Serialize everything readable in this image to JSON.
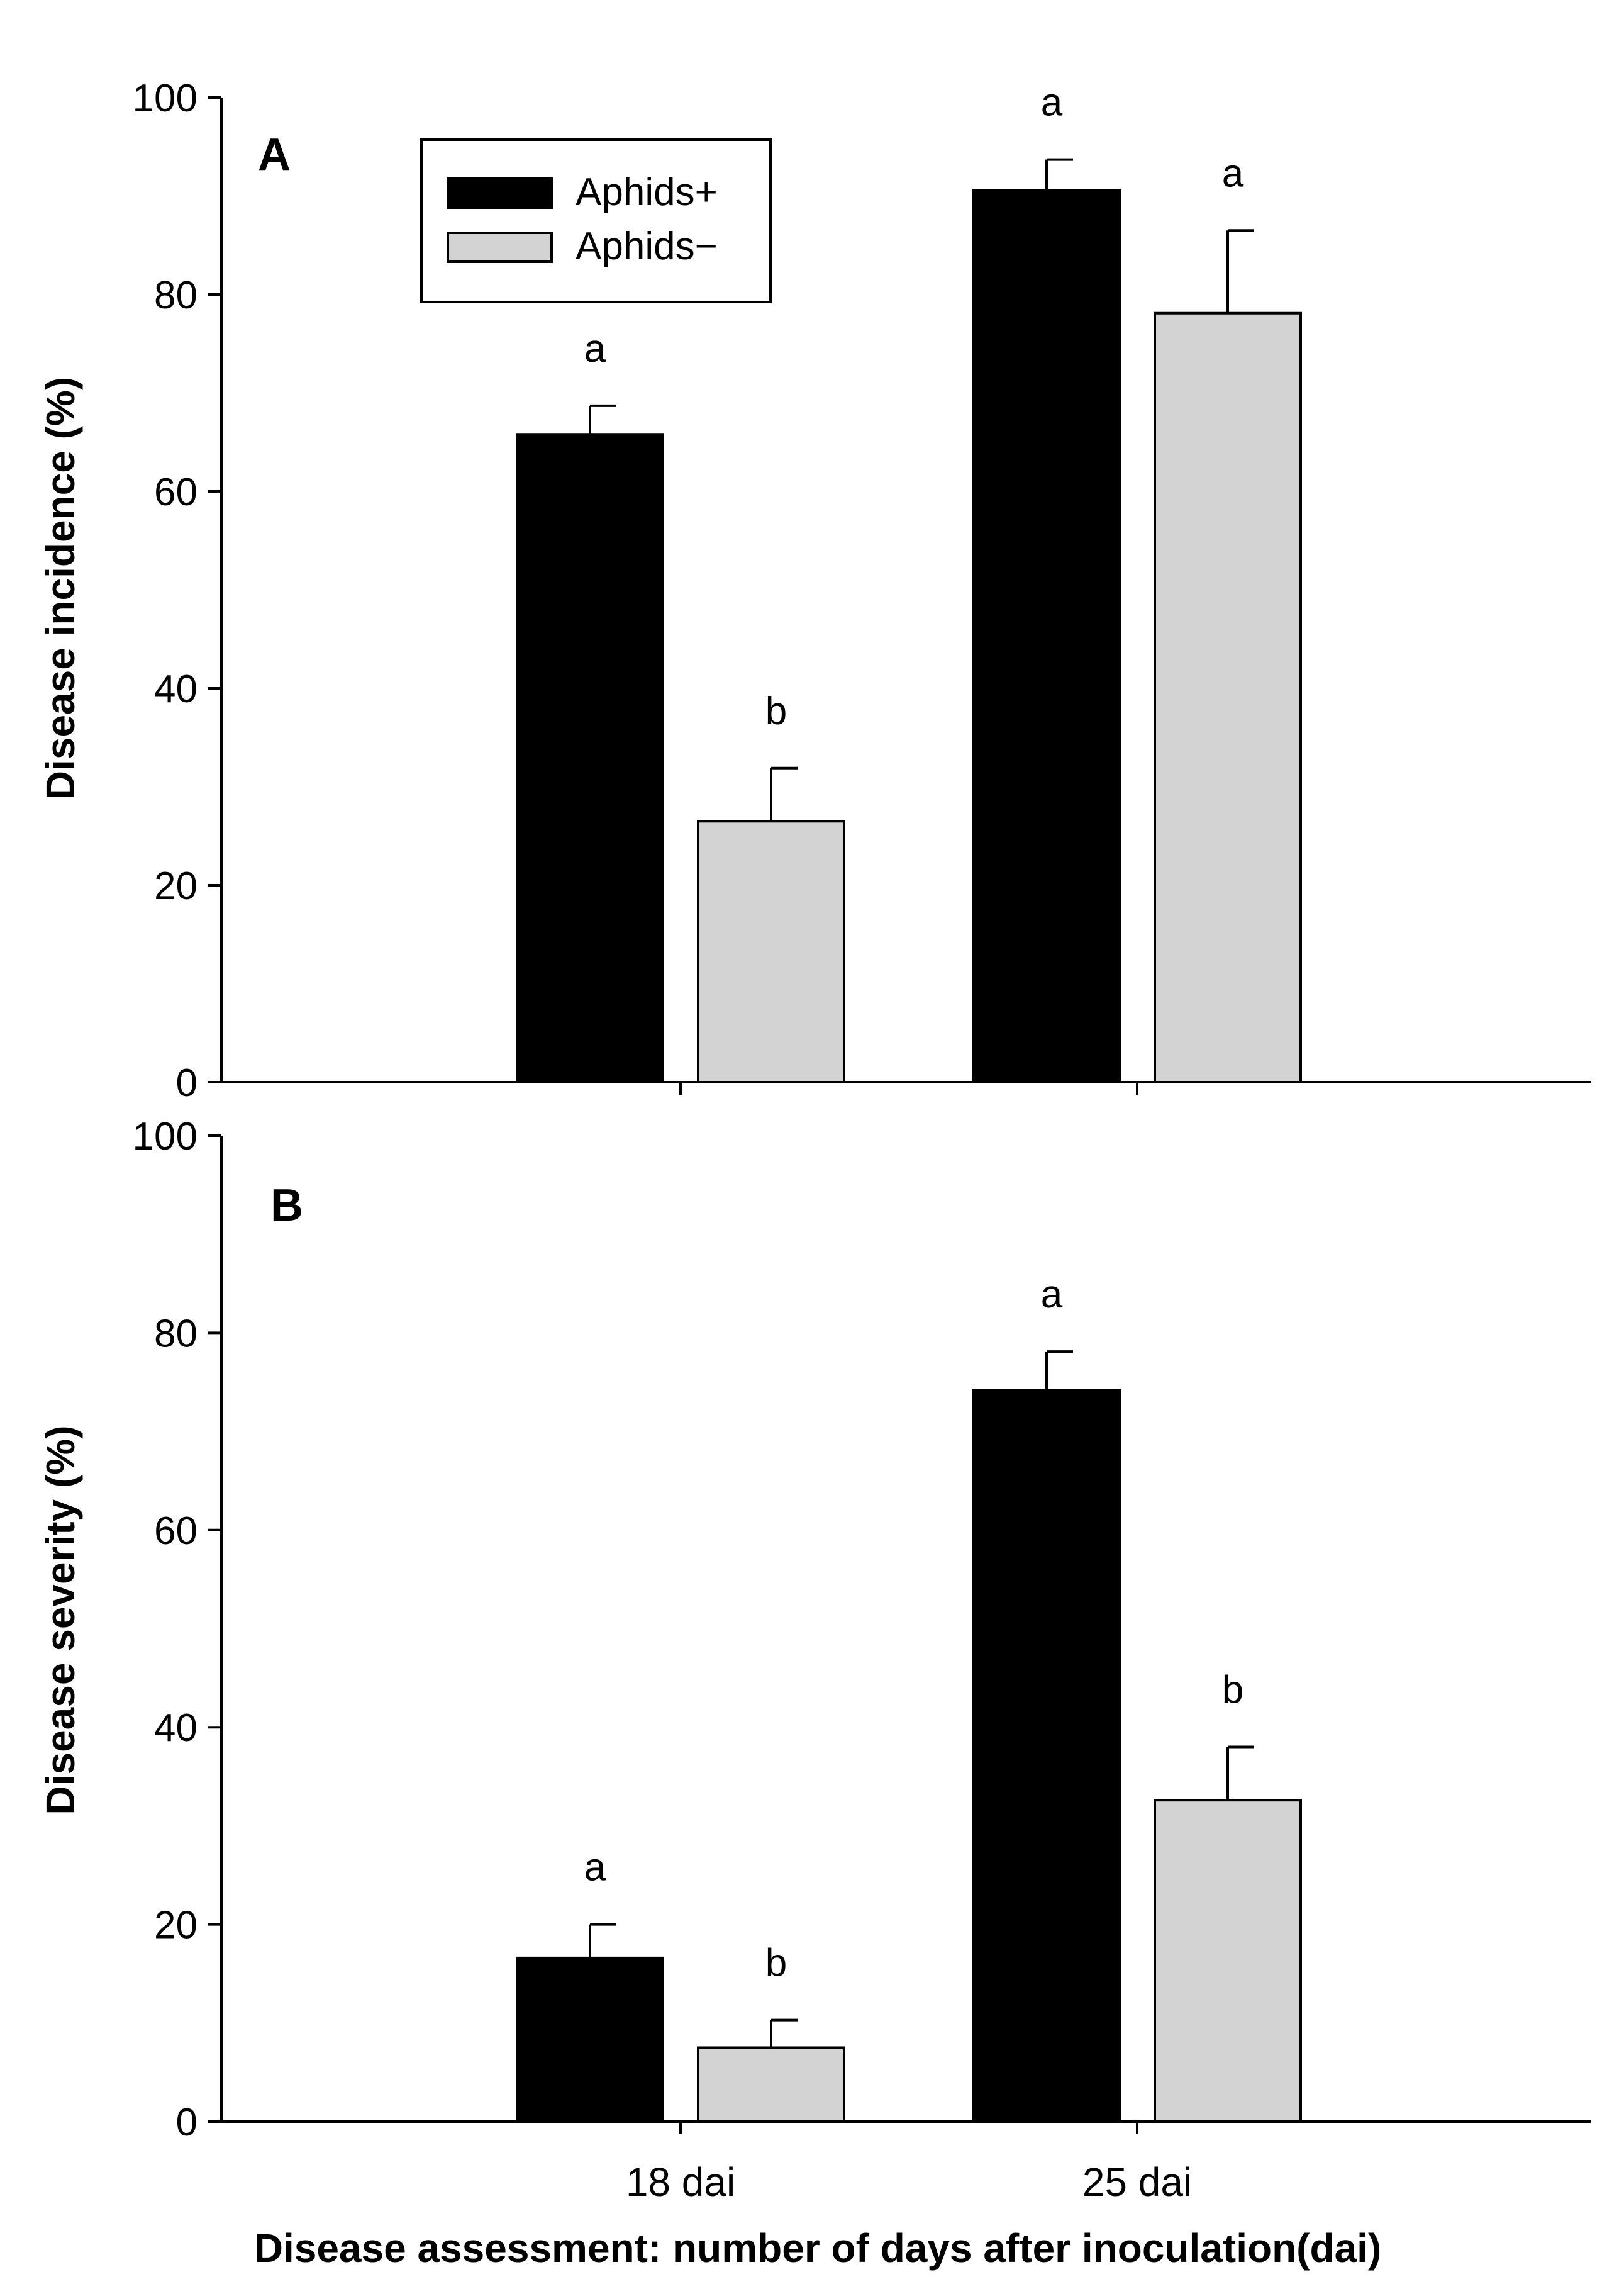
{
  "chart_data": [
    {
      "type": "bar",
      "panel_label": "A",
      "title": "",
      "ylabel": "Disease incidence (%)",
      "xlabel": "",
      "ylim": [
        0,
        100
      ],
      "yticks": [
        "0",
        "20",
        "40",
        "60",
        "80",
        "100"
      ],
      "categories": [
        "18 dai",
        "25 dai"
      ],
      "series": [
        {
          "name": "Aphids+",
          "color": "#000000",
          "values": [
            65.8,
            90.6
          ],
          "errors": [
            2.9,
            3.1
          ],
          "letters": [
            "a",
            "a"
          ]
        },
        {
          "name": "Aphids−",
          "color": "#d3d3d3",
          "values": [
            26.5,
            78.1
          ],
          "errors": [
            5.4,
            8.4
          ],
          "letters": [
            "b",
            "a"
          ]
        }
      ],
      "legend": {
        "position": "top-left",
        "entries": [
          "Aphids+",
          "Aphids−"
        ]
      }
    },
    {
      "type": "bar",
      "panel_label": "B",
      "title": "",
      "ylabel": "Disease severity (%)",
      "xlabel": "Disease assessment: number of days after inoculation(dai)",
      "ylim": [
        0,
        100
      ],
      "yticks": [
        "0",
        "20",
        "40",
        "60",
        "80",
        "100"
      ],
      "categories": [
        "18 dai",
        "25 dai"
      ],
      "series": [
        {
          "name": "Aphids+",
          "color": "#000000",
          "values": [
            16.6,
            74.2
          ],
          "errors": [
            3.4,
            3.9
          ],
          "letters": [
            "a",
            "a"
          ]
        },
        {
          "name": "Aphids−",
          "color": "#d3d3d3",
          "values": [
            7.5,
            32.6
          ],
          "errors": [
            2.8,
            5.4
          ],
          "letters": [
            "b",
            "b"
          ]
        }
      ]
    }
  ]
}
